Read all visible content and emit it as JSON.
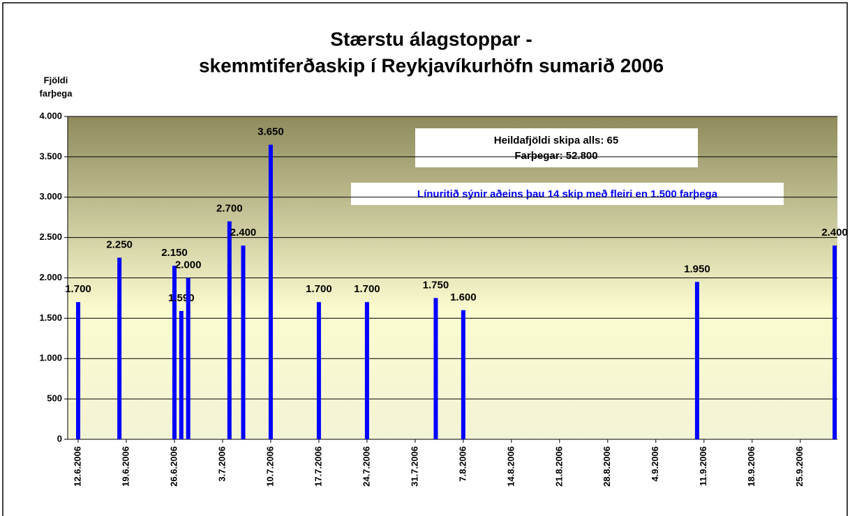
{
  "chart_data": {
    "type": "bar",
    "title": [
      "Stærstu álagstoppar -",
      "skemmtiferðaskip í Reykjavíkurhöfn sumarið 2006"
    ],
    "ylabel": [
      "Fjöldi",
      "farþega"
    ],
    "annotations": [
      "Heildafjöldi skipa alls:  65",
      "Farþegar: 52.800",
      "Línuritið sýnir aðeins þau 14 skip með fleiri en 1.500 farþega"
    ],
    "x": [
      "12.6.2006",
      "18.6.2006",
      "26.6.2006",
      "27.6.2006",
      "28.6.2006",
      "4.7.2006",
      "6.7.2006",
      "10.7.2006",
      "17.7.2006",
      "24.7.2006",
      "3.8.2006",
      "7.8.2006",
      "10.9.2006",
      "30.9.2006"
    ],
    "values": [
      1700,
      2250,
      2150,
      1590,
      2000,
      2700,
      2400,
      3650,
      1700,
      1700,
      1750,
      1600,
      1950,
      2400
    ],
    "value_labels": [
      "1.700",
      "2.250",
      "2.150",
      "1.590",
      "2.000",
      "2.700",
      "2.400",
      "3.650",
      "1.700",
      "1.700",
      "1.750",
      "1.600",
      "1.950",
      "2.400"
    ],
    "color": "#0000ff",
    "xlim": [
      "12.6.2006",
      "30.9.2006"
    ],
    "xticks": [
      "12.6.2006",
      "19.6.2006",
      "26.6.2006",
      "3.7.2006",
      "10.7.2006",
      "17.7.2006",
      "24.7.2006",
      "31.7.2006",
      "7.8.2006",
      "14.8.2006",
      "21.8.2006",
      "28.8.2006",
      "4.9.2006",
      "11.9.2006",
      "18.9.2006",
      "25.9.2006"
    ],
    "ylim": [
      0,
      4000
    ],
    "yticks": [
      0,
      500,
      {
        "value": 1000,
        "label": "1.000"
      },
      {
        "value": 1500,
        "label": "1.500"
      },
      {
        "value": 2000,
        "label": "2.000"
      },
      {
        "value": 2500,
        "label": "2.500"
      },
      {
        "value": 3000,
        "label": "3.000"
      },
      {
        "value": 3500,
        "label": "3.500"
      },
      {
        "value": 4000,
        "label": "4.000"
      }
    ],
    "grid": true
  }
}
